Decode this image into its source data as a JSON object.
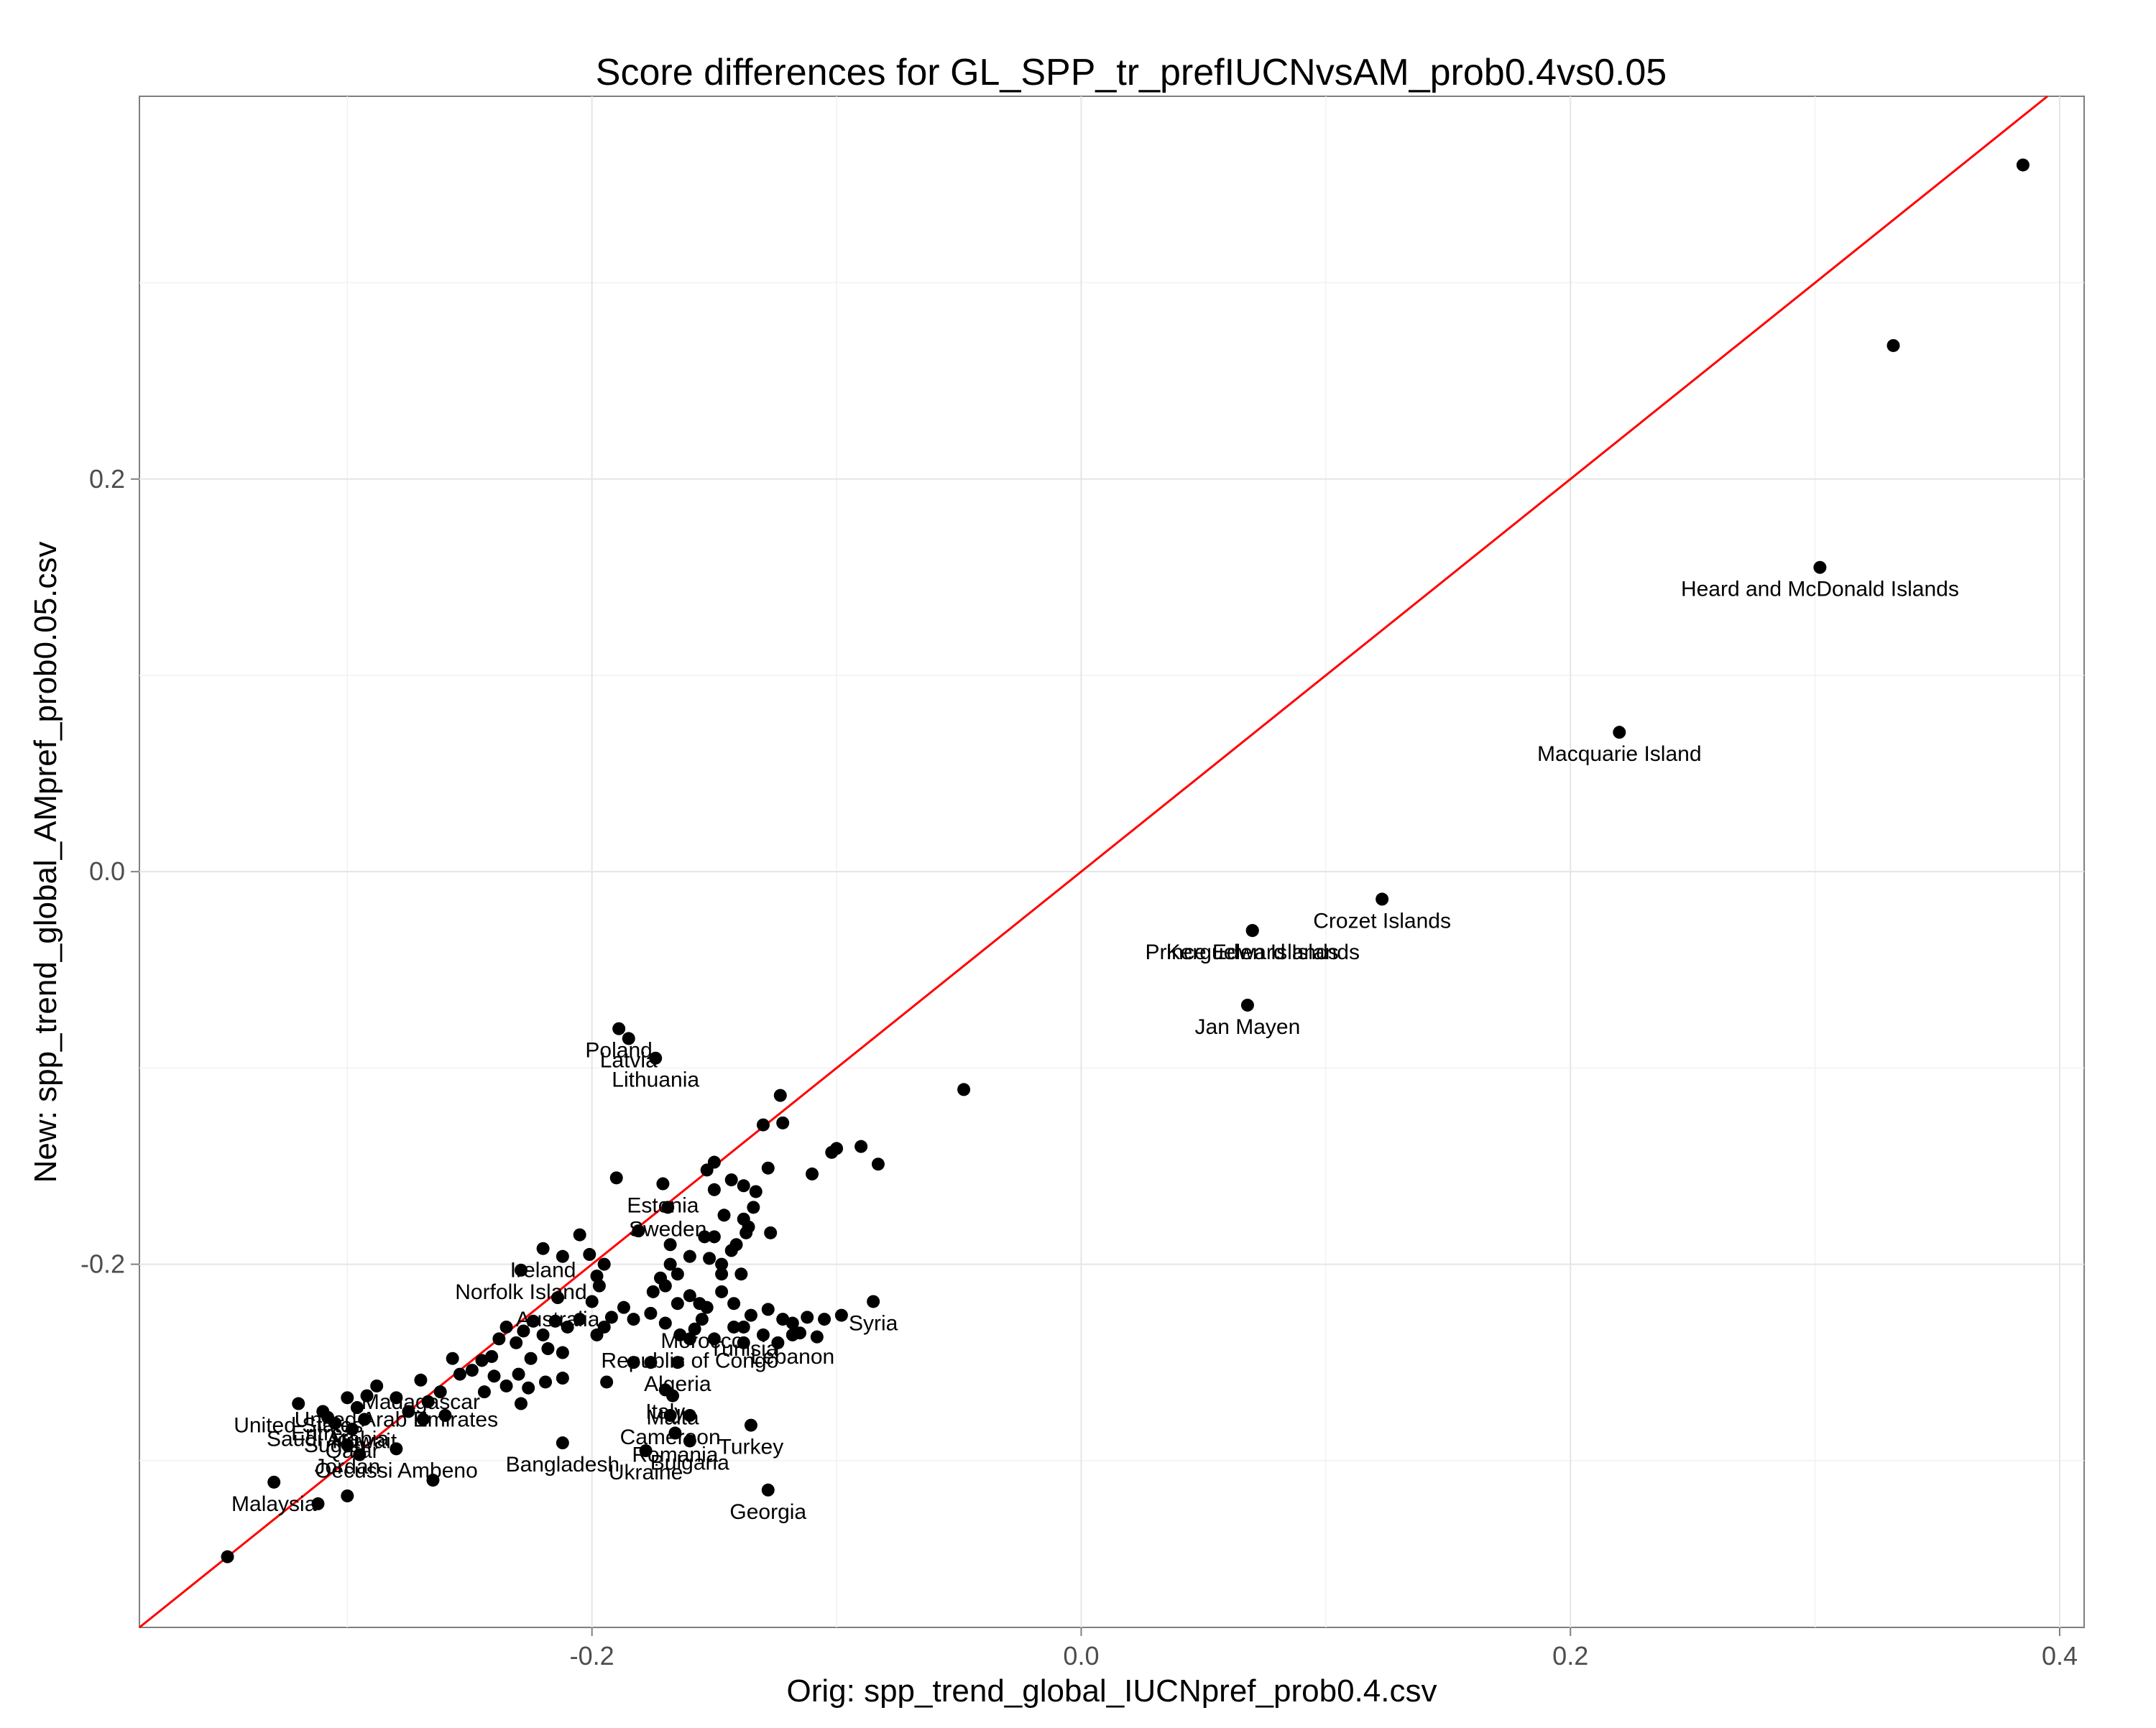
{
  "chart_data": {
    "type": "scatter",
    "title": "Score differences for GL_SPP_tr_prefIUCNvsAM_prob0.4vs0.05",
    "xlabel": "Orig: spp_trend_global_IUCNpref_prob0.4.csv",
    "ylabel": "New: spp_trend_global_AMpref_prob0.05.csv",
    "xlim": [
      -0.385,
      0.41
    ],
    "ylim": [
      -0.385,
      0.395
    ],
    "x_ticks": [
      -0.2,
      0.0,
      0.2,
      0.4
    ],
    "x_tick_labels": [
      "-0.2",
      "0.0",
      "0.2",
      "0.4"
    ],
    "y_ticks": [
      -0.2,
      0.0,
      0.2
    ],
    "y_tick_labels": [
      "-0.2",
      "0.0",
      "0.2"
    ],
    "grid": true,
    "reference_line": {
      "slope": 1,
      "intercept": 0,
      "color": "#ff0000"
    },
    "point_color": "#000000",
    "points": [
      {
        "x": 0.385,
        "y": 0.36
      },
      {
        "x": 0.332,
        "y": 0.268
      },
      {
        "x": 0.302,
        "y": 0.155,
        "label": "Heard and McDonald Islands"
      },
      {
        "x": 0.22,
        "y": 0.071,
        "label": "Macquarie Island"
      },
      {
        "x": 0.123,
        "y": -0.014,
        "label": "Crozet Islands"
      },
      {
        "x": 0.07,
        "y": -0.03,
        "label": "Prince Edward Islands"
      },
      {
        "x": 0.07,
        "y": -0.03,
        "label": "Kerguelen Islands"
      },
      {
        "x": 0.068,
        "y": -0.068,
        "label": "Jan Mayen"
      },
      {
        "x": -0.048,
        "y": -0.111
      },
      {
        "x": -0.189,
        "y": -0.08,
        "label": "Poland"
      },
      {
        "x": -0.185,
        "y": -0.085,
        "label": "Latvia"
      },
      {
        "x": -0.174,
        "y": -0.095,
        "label": "Lithuania"
      },
      {
        "x": -0.123,
        "y": -0.114
      },
      {
        "x": -0.122,
        "y": -0.128
      },
      {
        "x": -0.13,
        "y": -0.129
      },
      {
        "x": -0.1,
        "y": -0.141
      },
      {
        "x": -0.102,
        "y": -0.143
      },
      {
        "x": -0.09,
        "y": -0.14
      },
      {
        "x": -0.083,
        "y": -0.149
      },
      {
        "x": -0.11,
        "y": -0.154
      },
      {
        "x": -0.128,
        "y": -0.151
      },
      {
        "x": -0.15,
        "y": -0.148
      },
      {
        "x": -0.153,
        "y": -0.152
      },
      {
        "x": -0.15,
        "y": -0.162
      },
      {
        "x": -0.143,
        "y": -0.157
      },
      {
        "x": -0.138,
        "y": -0.16
      },
      {
        "x": -0.133,
        "y": -0.163
      },
      {
        "x": -0.134,
        "y": -0.171
      },
      {
        "x": -0.138,
        "y": -0.177
      },
      {
        "x": -0.146,
        "y": -0.175
      },
      {
        "x": -0.127,
        "y": -0.184
      },
      {
        "x": -0.137,
        "y": -0.184
      },
      {
        "x": -0.136,
        "y": -0.181
      },
      {
        "x": -0.15,
        "y": -0.186
      },
      {
        "x": -0.154,
        "y": -0.186
      },
      {
        "x": -0.141,
        "y": -0.19
      },
      {
        "x": -0.143,
        "y": -0.193
      },
      {
        "x": -0.16,
        "y": -0.196
      },
      {
        "x": -0.152,
        "y": -0.197
      },
      {
        "x": -0.147,
        "y": -0.2
      },
      {
        "x": -0.147,
        "y": -0.205
      },
      {
        "x": -0.139,
        "y": -0.205
      },
      {
        "x": -0.171,
        "y": -0.159,
        "label": "Estonia"
      },
      {
        "x": -0.19,
        "y": -0.156
      },
      {
        "x": -0.181,
        "y": -0.183
      },
      {
        "x": -0.169,
        "y": -0.171,
        "label": "Sweden"
      },
      {
        "x": -0.168,
        "y": -0.19
      },
      {
        "x": -0.168,
        "y": -0.2
      },
      {
        "x": -0.165,
        "y": -0.205
      },
      {
        "x": -0.172,
        "y": -0.207
      },
      {
        "x": -0.17,
        "y": -0.211
      },
      {
        "x": -0.175,
        "y": -0.214
      },
      {
        "x": -0.165,
        "y": -0.22
      },
      {
        "x": -0.16,
        "y": -0.216
      },
      {
        "x": -0.156,
        "y": -0.22
      },
      {
        "x": -0.153,
        "y": -0.222
      },
      {
        "x": -0.147,
        "y": -0.214
      },
      {
        "x": -0.142,
        "y": -0.22
      },
      {
        "x": -0.135,
        "y": -0.226
      },
      {
        "x": -0.128,
        "y": -0.223
      },
      {
        "x": -0.122,
        "y": -0.228
      },
      {
        "x": -0.118,
        "y": -0.23
      },
      {
        "x": -0.112,
        "y": -0.227
      },
      {
        "x": -0.105,
        "y": -0.228
      },
      {
        "x": -0.098,
        "y": -0.226
      },
      {
        "x": -0.085,
        "y": -0.219,
        "label": "Syria"
      },
      {
        "x": -0.195,
        "y": -0.2
      },
      {
        "x": -0.198,
        "y": -0.206
      },
      {
        "x": -0.201,
        "y": -0.195
      },
      {
        "x": -0.205,
        "y": -0.185
      },
      {
        "x": -0.212,
        "y": -0.196
      },
      {
        "x": -0.22,
        "y": -0.192,
        "label": "Ireland"
      },
      {
        "x": -0.229,
        "y": -0.203,
        "label": "Norfolk Island"
      },
      {
        "x": -0.214,
        "y": -0.217,
        "label": "Australia"
      },
      {
        "x": -0.197,
        "y": -0.211
      },
      {
        "x": -0.2,
        "y": -0.219
      },
      {
        "x": -0.187,
        "y": -0.222
      },
      {
        "x": -0.183,
        "y": -0.228
      },
      {
        "x": -0.176,
        "y": -0.225
      },
      {
        "x": -0.17,
        "y": -0.23
      },
      {
        "x": -0.164,
        "y": -0.236
      },
      {
        "x": -0.158,
        "y": -0.233
      },
      {
        "x": -0.15,
        "y": -0.238
      },
      {
        "x": -0.142,
        "y": -0.232
      },
      {
        "x": -0.138,
        "y": -0.24
      },
      {
        "x": -0.13,
        "y": -0.236
      },
      {
        "x": -0.124,
        "y": -0.24
      },
      {
        "x": -0.115,
        "y": -0.235
      },
      {
        "x": -0.108,
        "y": -0.237
      },
      {
        "x": -0.155,
        "y": -0.228,
        "label": "Morocco"
      },
      {
        "x": -0.138,
        "y": -0.232,
        "label": "Tunisia"
      },
      {
        "x": -0.118,
        "y": -0.236,
        "label": "Lebanon"
      },
      {
        "x": -0.16,
        "y": -0.238,
        "label": "Republic of Congo"
      },
      {
        "x": -0.165,
        "y": -0.25,
        "label": "Algeria"
      },
      {
        "x": -0.192,
        "y": -0.227
      },
      {
        "x": -0.195,
        "y": -0.232
      },
      {
        "x": -0.198,
        "y": -0.236
      },
      {
        "x": -0.205,
        "y": -0.228
      },
      {
        "x": -0.21,
        "y": -0.232
      },
      {
        "x": -0.215,
        "y": -0.229
      },
      {
        "x": -0.22,
        "y": -0.236
      },
      {
        "x": -0.224,
        "y": -0.229
      },
      {
        "x": -0.228,
        "y": -0.234
      },
      {
        "x": -0.231,
        "y": -0.24
      },
      {
        "x": -0.235,
        "y": -0.232
      },
      {
        "x": -0.238,
        "y": -0.238
      },
      {
        "x": -0.241,
        "y": -0.247
      },
      {
        "x": -0.245,
        "y": -0.249
      },
      {
        "x": -0.249,
        "y": -0.254
      },
      {
        "x": -0.254,
        "y": -0.256
      },
      {
        "x": -0.257,
        "y": -0.248
      },
      {
        "x": -0.212,
        "y": -0.245
      },
      {
        "x": -0.218,
        "y": -0.243
      },
      {
        "x": -0.225,
        "y": -0.248
      },
      {
        "x": -0.23,
        "y": -0.256
      },
      {
        "x": -0.235,
        "y": -0.262
      },
      {
        "x": -0.24,
        "y": -0.257
      },
      {
        "x": -0.244,
        "y": -0.265
      },
      {
        "x": -0.212,
        "y": -0.258
      },
      {
        "x": -0.219,
        "y": -0.26
      },
      {
        "x": -0.226,
        "y": -0.263
      },
      {
        "x": -0.229,
        "y": -0.271
      },
      {
        "x": -0.194,
        "y": -0.26
      },
      {
        "x": -0.183,
        "y": -0.25
      },
      {
        "x": -0.176,
        "y": -0.25
      },
      {
        "x": -0.17,
        "y": -0.264,
        "label": "Italy"
      },
      {
        "x": -0.167,
        "y": -0.267,
        "label": "Malta"
      },
      {
        "x": -0.168,
        "y": -0.277,
        "label": "Cameroon"
      },
      {
        "x": -0.16,
        "y": -0.277
      },
      {
        "x": -0.135,
        "y": -0.282,
        "label": "Turkey"
      },
      {
        "x": -0.16,
        "y": -0.29,
        "label": "Bulgaria"
      },
      {
        "x": -0.166,
        "y": -0.286,
        "label": "Romania"
      },
      {
        "x": -0.212,
        "y": -0.291,
        "label": "Bangladesh"
      },
      {
        "x": -0.178,
        "y": -0.295,
        "label": "Ukraine"
      },
      {
        "x": -0.128,
        "y": -0.315,
        "label": "Georgia"
      },
      {
        "x": -0.27,
        "y": -0.259,
        "label": "Madagascar"
      },
      {
        "x": -0.262,
        "y": -0.265
      },
      {
        "x": -0.267,
        "y": -0.27
      },
      {
        "x": -0.28,
        "y": -0.268,
        "label": "United Arab Emirates"
      },
      {
        "x": -0.288,
        "y": -0.262
      },
      {
        "x": -0.292,
        "y": -0.267
      },
      {
        "x": -0.275,
        "y": -0.275
      },
      {
        "x": -0.269,
        "y": -0.279
      },
      {
        "x": -0.26,
        "y": -0.277
      },
      {
        "x": -0.3,
        "y": -0.268
      },
      {
        "x": -0.296,
        "y": -0.273
      },
      {
        "x": -0.32,
        "y": -0.271,
        "label": "United States"
      },
      {
        "x": -0.31,
        "y": -0.275,
        "label": "Eritrea"
      },
      {
        "x": -0.308,
        "y": -0.278,
        "label": "Saudi Arabia"
      },
      {
        "x": -0.305,
        "y": -0.281,
        "label": "Sudan"
      },
      {
        "x": -0.293,
        "y": -0.279,
        "label": "Kuwait"
      },
      {
        "x": -0.298,
        "y": -0.284,
        "label": "Qatar"
      },
      {
        "x": -0.3,
        "y": -0.292,
        "label": "Jordan"
      },
      {
        "x": -0.295,
        "y": -0.297
      },
      {
        "x": -0.28,
        "y": -0.294,
        "label": "Oecussi Ambeno"
      },
      {
        "x": -0.265,
        "y": -0.31
      },
      {
        "x": -0.33,
        "y": -0.311,
        "label": "Malaysia"
      },
      {
        "x": -0.312,
        "y": -0.322
      },
      {
        "x": -0.3,
        "y": -0.318
      },
      {
        "x": -0.349,
        "y": -0.349
      }
    ]
  }
}
